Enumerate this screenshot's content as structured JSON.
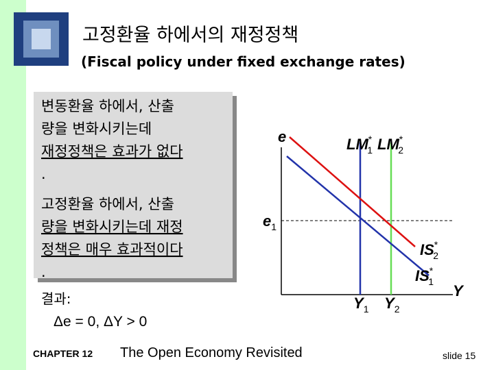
{
  "header": {
    "title": "고정환율 하에서의 재정정책",
    "subtitle": "(Fiscal policy under fixed exchange rates)"
  },
  "box": {
    "flexible": [
      "변동환율 하에서, 산출",
      "량을 변화시키는데",
      "재정정책은 효과가 없다",
      "."
    ],
    "fixed": [
      "고정환율 하에서, 산출",
      "량을 변화시키는데 재정",
      "정책은 매우 효과적이다",
      "."
    ]
  },
  "result": {
    "label": "결과:",
    "formula": "Δe = 0,  ΔY > 0"
  },
  "diagram": {
    "labels": {
      "y_axis": "e",
      "x_axis": "Y",
      "e1": {
        "main": "e",
        "sub": "1"
      },
      "y1": {
        "main": "Y",
        "sub": "1"
      },
      "y2": {
        "main": "Y",
        "sub": "2"
      },
      "lm1": {
        "main": "LM",
        "sup": "*",
        "sub": "1"
      },
      "lm2": {
        "main": "LM",
        "sup": "*",
        "sub": "2"
      },
      "is1": {
        "main": "IS",
        "sup": "*",
        "sub": "1"
      },
      "is2": {
        "main": "IS",
        "sup": "*",
        "sub": "2"
      }
    }
  },
  "footer": {
    "chapter": "CHAPTER 12",
    "book": "The Open Economy Revisited",
    "slide": "slide 15"
  }
}
